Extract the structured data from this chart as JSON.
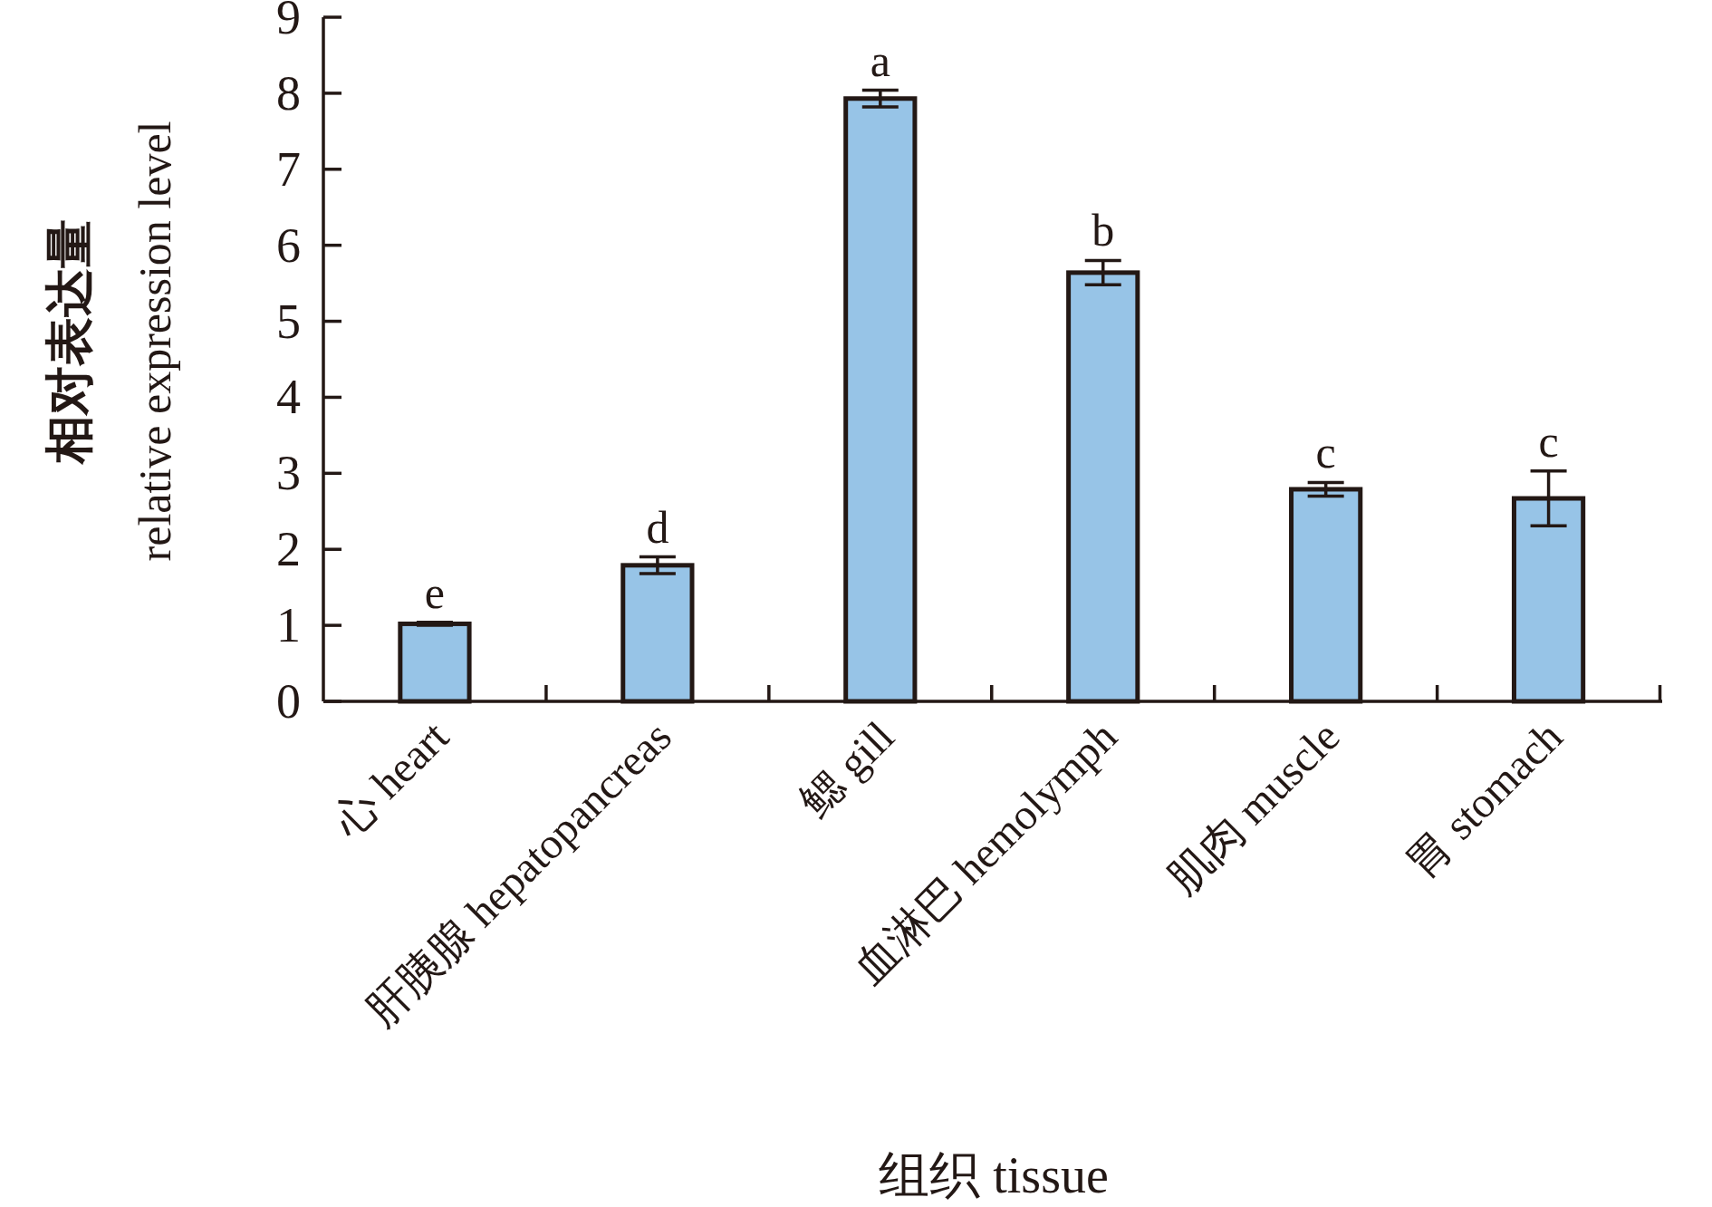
{
  "chart_data": {
    "type": "bar",
    "xlabel": "组织 tissue",
    "ylabel": "相对表达量 relative expression level",
    "categories": [
      "心 heart",
      "肝胰腺 hepatopancreas",
      "鳃 gill",
      "血淋巴 hemolymph",
      "肌肉 muscle",
      "胃 stomach"
    ],
    "values": [
      1.02,
      1.79,
      7.93,
      5.64,
      2.79,
      2.67
    ],
    "errors": [
      0.02,
      0.11,
      0.11,
      0.16,
      0.09,
      0.36
    ],
    "color": "#97c4e7",
    "ylim": [
      0,
      9
    ],
    "yticks": [
      0,
      1,
      2,
      3,
      4,
      5,
      6,
      7,
      8,
      9
    ],
    "annotations": [
      {
        "text": "e",
        "x": "心 heart",
        "y": 1.04
      },
      {
        "text": "d",
        "x": "肝胰腺 hepatopancreas",
        "y": 1.9
      },
      {
        "text": "a",
        "x": "鳃 gill",
        "y": 8.04
      },
      {
        "text": "b",
        "x": "血淋巴 hemolymph",
        "y": 5.8
      },
      {
        "text": "c",
        "x": "肌肉 muscle",
        "y": 2.88
      },
      {
        "text": "c",
        "x": "胃 stomach",
        "y": 3.03
      }
    ]
  }
}
